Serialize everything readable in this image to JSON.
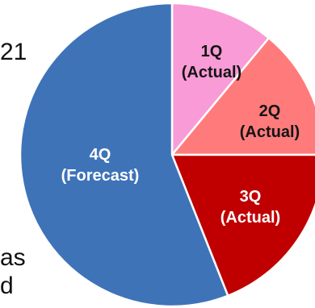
{
  "background_text": {
    "line_1": "21",
    "line_2": "as",
    "line_3": "d"
  },
  "chart_data": {
    "type": "pie",
    "title": "",
    "unit": "%",
    "slices": [
      {
        "label_line1": "1Q",
        "label_line2": "(Actual)",
        "value": 11,
        "color": "#f99bd6",
        "label_color": "#141414"
      },
      {
        "label_line1": "2Q",
        "label_line2": "(Actual)",
        "value": 14,
        "color": "#ff7b7b",
        "label_color": "#141414"
      },
      {
        "label_line1": "3Q",
        "label_line2": "(Actual)",
        "value": 19,
        "color": "#c00000",
        "label_color": "#ffffff"
      },
      {
        "label_line1": "4Q",
        "label_line2": "(Forecast)",
        "value": 56,
        "color": "#3e73b8",
        "label_color": "#ffffff"
      }
    ],
    "start_angle_deg": 0,
    "direction": "clockwise",
    "legend": "none"
  }
}
